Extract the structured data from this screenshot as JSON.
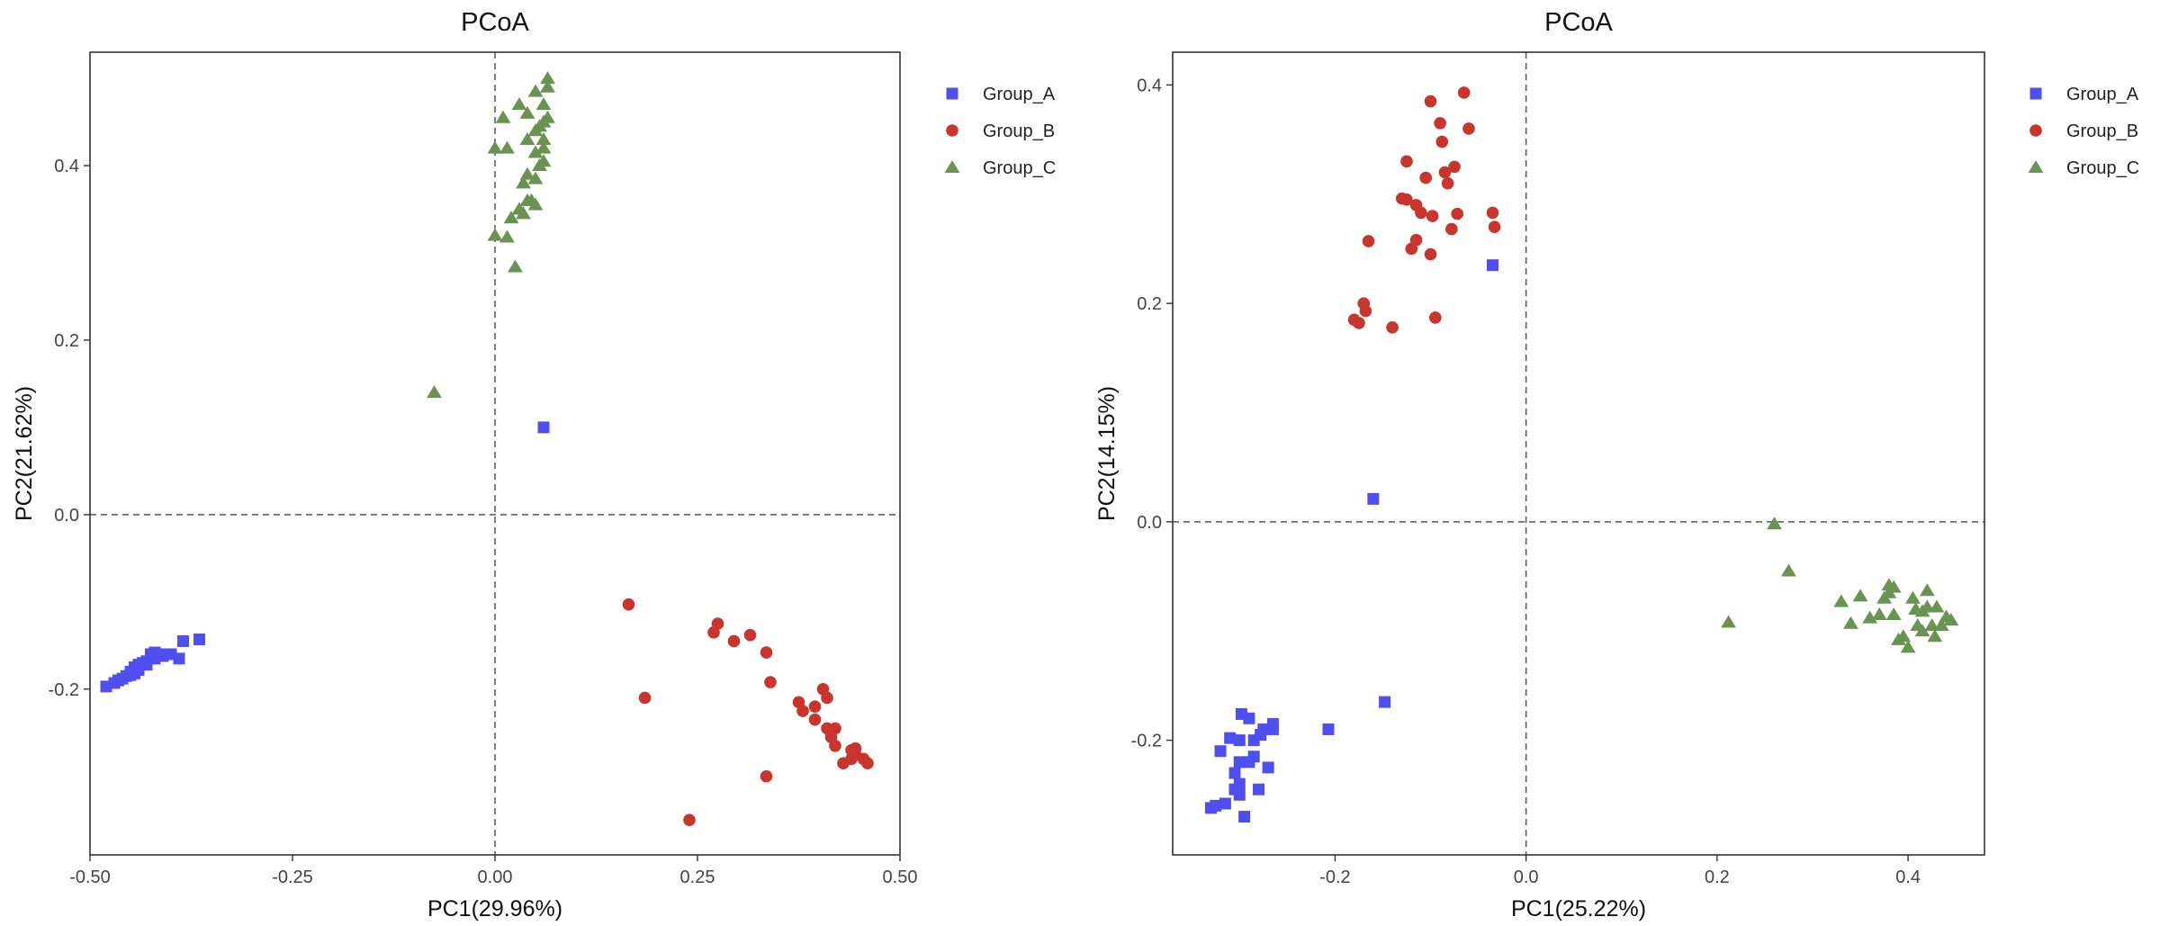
{
  "chart_data": [
    {
      "type": "scatter",
      "title": "PCoA",
      "xlabel": "PC1(29.96%)",
      "ylabel": "PC2(21.62%)",
      "xlim": [
        -0.5,
        0.5
      ],
      "ylim": [
        -0.39,
        0.53
      ],
      "xticks": [
        -0.5,
        -0.25,
        0.0,
        0.25,
        0.5
      ],
      "xtick_labels": [
        "-0.50",
        "-0.25",
        "0.00",
        "0.25",
        "0.50"
      ],
      "yticks": [
        -0.2,
        0.0,
        0.2,
        0.4
      ],
      "ytick_labels": [
        "-0.2",
        "0.0",
        "0.2",
        "0.4"
      ],
      "grid": false,
      "reference_lines": {
        "x": 0,
        "y": 0,
        "style": "dashed"
      },
      "legend_position": "right",
      "series": [
        {
          "name": "Group_A",
          "marker": "square",
          "color": "#4f4ff0",
          "points": [
            [
              -0.48,
              -0.197
            ],
            [
              -0.47,
              -0.193
            ],
            [
              -0.465,
              -0.19
            ],
            [
              -0.46,
              -0.188
            ],
            [
              -0.455,
              -0.185
            ],
            [
              -0.45,
              -0.184
            ],
            [
              -0.45,
              -0.18
            ],
            [
              -0.445,
              -0.182
            ],
            [
              -0.44,
              -0.178
            ],
            [
              -0.445,
              -0.175
            ],
            [
              -0.44,
              -0.172
            ],
            [
              -0.435,
              -0.17
            ],
            [
              -0.43,
              -0.172
            ],
            [
              -0.43,
              -0.168
            ],
            [
              -0.425,
              -0.165
            ],
            [
              -0.42,
              -0.165
            ],
            [
              -0.425,
              -0.16
            ],
            [
              -0.42,
              -0.158
            ],
            [
              -0.415,
              -0.16
            ],
            [
              -0.41,
              -0.162
            ],
            [
              -0.405,
              -0.16
            ],
            [
              -0.39,
              -0.165
            ],
            [
              -0.4,
              -0.16
            ],
            [
              -0.385,
              -0.145
            ],
            [
              -0.365,
              -0.143
            ],
            [
              0.06,
              0.1
            ]
          ]
        },
        {
          "name": "Group_B",
          "marker": "circle",
          "color": "#c9352c",
          "points": [
            [
              0.165,
              -0.103
            ],
            [
              0.185,
              -0.21
            ],
            [
              0.24,
              -0.35
            ],
            [
              0.27,
              -0.135
            ],
            [
              0.275,
              -0.125
            ],
            [
              0.295,
              -0.145
            ],
            [
              0.315,
              -0.138
            ],
            [
              0.335,
              -0.158
            ],
            [
              0.34,
              -0.192
            ],
            [
              0.335,
              -0.3
            ],
            [
              0.375,
              -0.215
            ],
            [
              0.38,
              -0.225
            ],
            [
              0.395,
              -0.22
            ],
            [
              0.395,
              -0.235
            ],
            [
              0.405,
              -0.2
            ],
            [
              0.41,
              -0.21
            ],
            [
              0.41,
              -0.245
            ],
            [
              0.415,
              -0.255
            ],
            [
              0.42,
              -0.245
            ],
            [
              0.42,
              -0.265
            ],
            [
              0.44,
              -0.27
            ],
            [
              0.43,
              -0.285
            ],
            [
              0.44,
              -0.28
            ],
            [
              0.445,
              -0.275
            ],
            [
              0.445,
              -0.268
            ],
            [
              0.455,
              -0.28
            ],
            [
              0.46,
              -0.285
            ]
          ]
        },
        {
          "name": "Group_C",
          "marker": "triangle",
          "color": "#6a9250",
          "points": [
            [
              -0.075,
              0.14
            ],
            [
              0.0,
              0.32
            ],
            [
              0.015,
              0.318
            ],
            [
              0.025,
              0.284
            ],
            [
              0.02,
              0.34
            ],
            [
              0.03,
              0.35
            ],
            [
              0.035,
              0.345
            ],
            [
              0.04,
              0.36
            ],
            [
              0.045,
              0.36
            ],
            [
              0.05,
              0.355
            ],
            [
              0.035,
              0.38
            ],
            [
              0.04,
              0.39
            ],
            [
              0.05,
              0.385
            ],
            [
              0.055,
              0.4
            ],
            [
              0.06,
              0.405
            ],
            [
              0.05,
              0.415
            ],
            [
              0.06,
              0.42
            ],
            [
              0.04,
              0.43
            ],
            [
              0.05,
              0.44
            ],
            [
              0.055,
              0.445
            ],
            [
              0.06,
              0.45
            ],
            [
              0.065,
              0.455
            ],
            [
              0.04,
              0.46
            ],
            [
              0.06,
              0.47
            ],
            [
              0.03,
              0.47
            ],
            [
              0.05,
              0.485
            ],
            [
              0.065,
              0.49
            ],
            [
              0.065,
              0.5
            ],
            [
              0.01,
              0.455
            ],
            [
              0.0,
              0.42
            ],
            [
              0.015,
              0.42
            ],
            [
              0.06,
              0.43
            ]
          ]
        }
      ]
    },
    {
      "type": "scatter",
      "title": "PCoA",
      "xlabel": "PC1(25.22%)",
      "ylabel": "PC2(14.15%)",
      "xlim": [
        -0.37,
        0.48
      ],
      "ylim": [
        -0.305,
        0.43
      ],
      "xticks": [
        -0.2,
        0.0,
        0.2,
        0.4
      ],
      "xtick_labels": [
        "-0.2",
        "0.0",
        "0.2",
        "0.4"
      ],
      "yticks": [
        -0.2,
        0.0,
        0.2,
        0.4
      ],
      "ytick_labels": [
        "-0.2",
        "0.0",
        "0.2",
        "0.4"
      ],
      "grid": false,
      "reference_lines": {
        "x": 0,
        "y": 0,
        "style": "dashed"
      },
      "legend_position": "right",
      "series": [
        {
          "name": "Group_A",
          "marker": "square",
          "color": "#4f4ff0",
          "points": [
            [
              -0.33,
              -0.262
            ],
            [
              -0.325,
              -0.26
            ],
            [
              -0.32,
              -0.21
            ],
            [
              -0.315,
              -0.258
            ],
            [
              -0.31,
              -0.198
            ],
            [
              -0.305,
              -0.245
            ],
            [
              -0.305,
              -0.23
            ],
            [
              -0.3,
              -0.22
            ],
            [
              -0.3,
              -0.24
            ],
            [
              -0.3,
              -0.25
            ],
            [
              -0.298,
              -0.176
            ],
            [
              -0.3,
              -0.2
            ],
            [
              -0.295,
              -0.27
            ],
            [
              -0.29,
              -0.18
            ],
            [
              -0.29,
              -0.22
            ],
            [
              -0.285,
              -0.215
            ],
            [
              -0.285,
              -0.2
            ],
            [
              -0.28,
              -0.245
            ],
            [
              -0.278,
              -0.195
            ],
            [
              -0.275,
              -0.19
            ],
            [
              -0.27,
              -0.225
            ],
            [
              -0.265,
              -0.19
            ],
            [
              -0.265,
              -0.185
            ],
            [
              -0.207,
              -0.19
            ],
            [
              -0.148,
              -0.165
            ],
            [
              -0.16,
              0.021
            ],
            [
              -0.035,
              0.235
            ]
          ]
        },
        {
          "name": "Group_B",
          "marker": "circle",
          "color": "#c9352c",
          "points": [
            [
              -0.18,
              0.185
            ],
            [
              -0.175,
              0.182
            ],
            [
              -0.17,
              0.2
            ],
            [
              -0.168,
              0.193
            ],
            [
              -0.165,
              0.257
            ],
            [
              -0.14,
              0.178
            ],
            [
              -0.13,
              0.296
            ],
            [
              -0.125,
              0.295
            ],
            [
              -0.125,
              0.33
            ],
            [
              -0.12,
              0.25
            ],
            [
              -0.115,
              0.258
            ],
            [
              -0.115,
              0.29
            ],
            [
              -0.11,
              0.283
            ],
            [
              -0.105,
              0.315
            ],
            [
              -0.1,
              0.245
            ],
            [
              -0.1,
              0.385
            ],
            [
              -0.098,
              0.28
            ],
            [
              -0.095,
              0.187
            ],
            [
              -0.09,
              0.365
            ],
            [
              -0.088,
              0.348
            ],
            [
              -0.085,
              0.32
            ],
            [
              -0.082,
              0.31
            ],
            [
              -0.078,
              0.268
            ],
            [
              -0.075,
              0.325
            ],
            [
              -0.072,
              0.282
            ],
            [
              -0.065,
              0.393
            ],
            [
              -0.06,
              0.36
            ],
            [
              -0.035,
              0.283
            ],
            [
              -0.033,
              0.27
            ]
          ]
        },
        {
          "name": "Group_C",
          "marker": "triangle",
          "color": "#6a9250",
          "points": [
            [
              0.212,
              -0.092
            ],
            [
              0.26,
              -0.002
            ],
            [
              0.275,
              -0.045
            ],
            [
              0.33,
              -0.073
            ],
            [
              0.34,
              -0.093
            ],
            [
              0.35,
              -0.068
            ],
            [
              0.36,
              -0.088
            ],
            [
              0.37,
              -0.085
            ],
            [
              0.375,
              -0.07
            ],
            [
              0.38,
              -0.065
            ],
            [
              0.38,
              -0.058
            ],
            [
              0.385,
              -0.06
            ],
            [
              0.385,
              -0.085
            ],
            [
              0.39,
              -0.108
            ],
            [
              0.395,
              -0.105
            ],
            [
              0.4,
              -0.115
            ],
            [
              0.405,
              -0.07
            ],
            [
              0.408,
              -0.08
            ],
            [
              0.41,
              -0.095
            ],
            [
              0.415,
              -0.1
            ],
            [
              0.415,
              -0.082
            ],
            [
              0.42,
              -0.063
            ],
            [
              0.42,
              -0.078
            ],
            [
              0.425,
              -0.095
            ],
            [
              0.428,
              -0.105
            ],
            [
              0.43,
              -0.078
            ],
            [
              0.435,
              -0.095
            ],
            [
              0.44,
              -0.087
            ],
            [
              0.445,
              -0.09
            ]
          ]
        }
      ]
    }
  ]
}
